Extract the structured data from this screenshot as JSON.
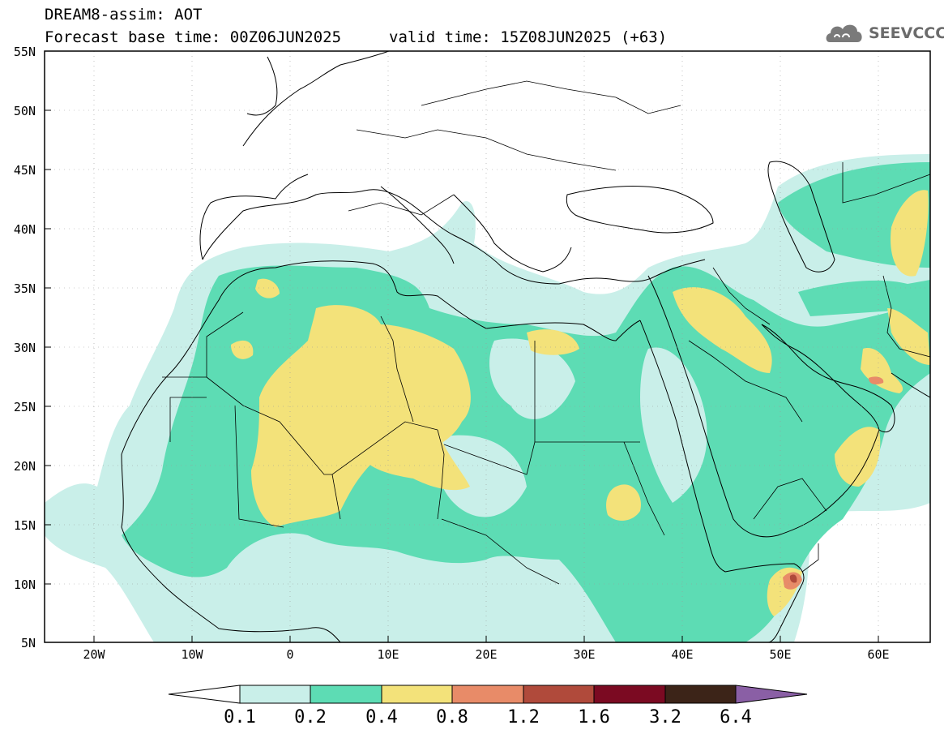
{
  "header": {
    "model_line": "DREAM8-assim: AOT",
    "base_time": "Forecast base time: 00Z06JUN2025",
    "valid_time": "valid time: 15Z08JUN2025 (+63)"
  },
  "logo": {
    "text": "SEEVCCC",
    "icon": "cloud-icon"
  },
  "map": {
    "lat_labels": [
      "55N",
      "50N",
      "45N",
      "40N",
      "35N",
      "30N",
      "25N",
      "20N",
      "15N",
      "10N",
      "5N"
    ],
    "lon_labels": [
      "20W",
      "10W",
      "0",
      "10E",
      "20E",
      "30E",
      "40E",
      "50E",
      "60E"
    ],
    "lon_range": [
      -25,
      65
    ],
    "lat_range": [
      5,
      55
    ]
  },
  "colorbar": {
    "labels": [
      "0.1",
      "0.2",
      "0.4",
      "0.8",
      "1.2",
      "1.6",
      "3.2",
      "6.4"
    ],
    "colors": [
      "#ffffff",
      "#c9efe9",
      "#5ddcb4",
      "#f3e27a",
      "#e88b68",
      "#b04a3b",
      "#7b0a22",
      "#3c2418",
      "#8a5fa5"
    ]
  },
  "colors": {
    "land": "#ffffff",
    "light": "#c9efe9",
    "green": "#5ddcb4",
    "yellow": "#f3e27a",
    "orange": "#e88b68",
    "red": "#b04a3b"
  }
}
